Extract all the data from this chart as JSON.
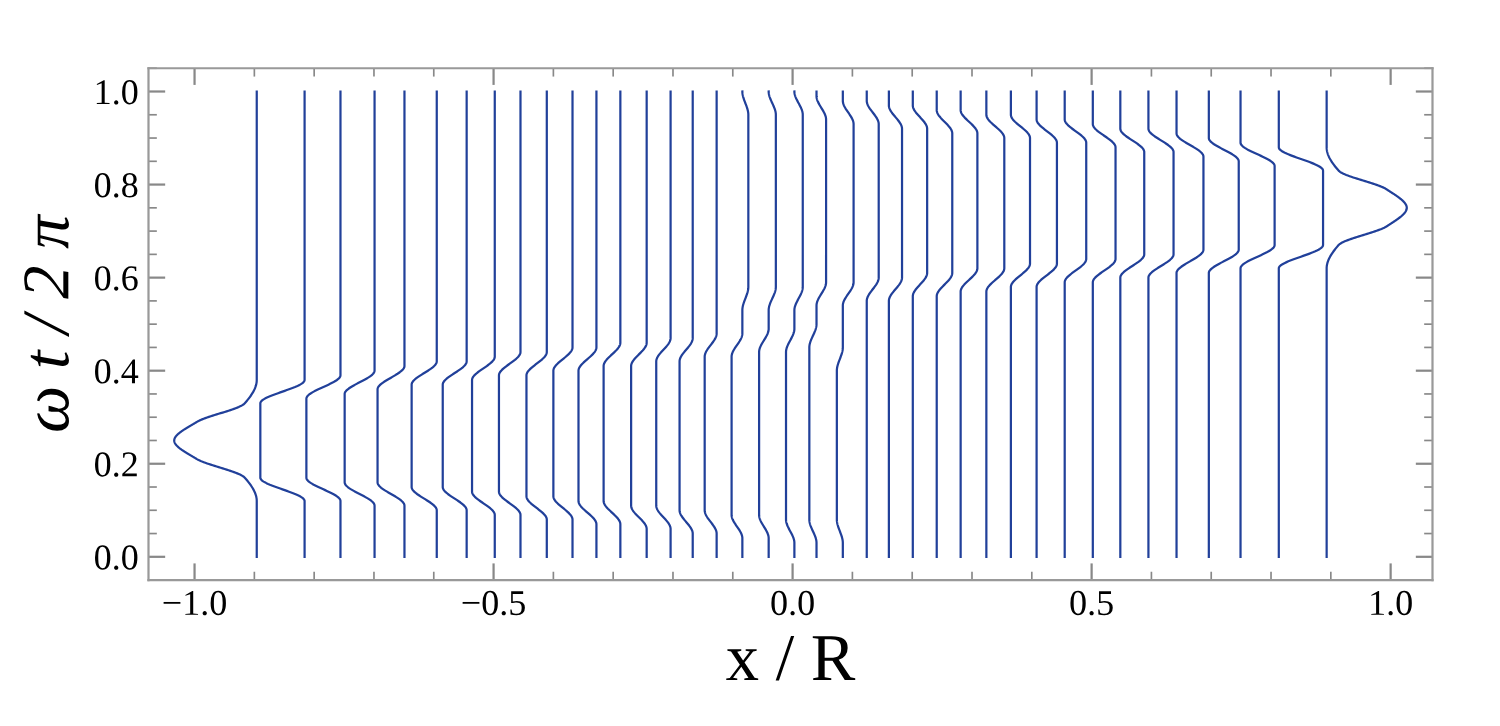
{
  "chart_data": {
    "type": "line",
    "xlabel": "x / R",
    "ylabel": "ω t / 2 π",
    "color": "#21409a",
    "xlim": [
      -1.077,
      1.07
    ],
    "xticks": [
      {
        "value": -1.0,
        "label": "−1.0"
      },
      {
        "value": -0.5,
        "label": "−0.5"
      },
      {
        "value": 0.0,
        "label": "0.0"
      },
      {
        "value": 0.5,
        "label": "0.5"
      },
      {
        "value": 1.0,
        "label": "1.0"
      }
    ],
    "ylim": [
      -0.05,
      1.05
    ],
    "yticks": [
      {
        "value": 0,
        "label": "0.0"
      },
      0.2,
      0.4,
      0.6,
      0.8,
      {
        "value": 1,
        "label": "1.0"
      }
    ],
    "grid": false,
    "legend": false,
    "series": [
      {
        "x": [
          -0.896,
          -0.896,
          -0.916,
          -0.996,
          -1.034,
          -0.996,
          -0.916,
          -0.896,
          -0.896
        ],
        "values": [
          0,
          0.12,
          0.17,
          0.21,
          0.25,
          0.29,
          0.33,
          0.38,
          1
        ]
      },
      {
        "x": [
          -0.816,
          -0.816,
          -0.89,
          -0.89,
          -0.816,
          -0.816
        ],
        "values": [
          0,
          0.12,
          0.17,
          0.33,
          0.38,
          1
        ]
      },
      {
        "x": [
          -0.756,
          -0.756,
          -0.813,
          -0.813,
          -0.756,
          -0.756
        ],
        "values": [
          0,
          0.12,
          0.17,
          0.34,
          0.39,
          1
        ]
      },
      {
        "x": [
          -0.699,
          -0.699,
          -0.749,
          -0.749,
          -0.699,
          -0.699
        ],
        "values": [
          0,
          0.11,
          0.16,
          0.35,
          0.4,
          1
        ]
      },
      {
        "x": [
          -0.649,
          -0.649,
          -0.694,
          -0.694,
          -0.649,
          -0.649
        ],
        "values": [
          0,
          0.11,
          0.16,
          0.36,
          0.41,
          1
        ]
      },
      {
        "x": [
          -0.595,
          -0.595,
          -0.637,
          -0.637,
          -0.595,
          -0.595
        ],
        "values": [
          0,
          0.1,
          0.15,
          0.37,
          0.42,
          1
        ]
      },
      {
        "x": [
          -0.545,
          -0.545,
          -0.585,
          -0.585,
          -0.545,
          -0.545
        ],
        "values": [
          0,
          0.1,
          0.15,
          0.37,
          0.42,
          1
        ]
      },
      {
        "x": [
          -0.498,
          -0.498,
          -0.536,
          -0.536,
          -0.498,
          -0.498
        ],
        "values": [
          0,
          0.09,
          0.14,
          0.38,
          0.43,
          1
        ]
      },
      {
        "x": [
          -0.455,
          -0.455,
          -0.491,
          -0.491,
          -0.455,
          -0.455
        ],
        "values": [
          0,
          0.09,
          0.14,
          0.39,
          0.44,
          1
        ]
      },
      {
        "x": [
          -0.411,
          -0.411,
          -0.445,
          -0.445,
          -0.411,
          -0.411
        ],
        "values": [
          0,
          0.08,
          0.13,
          0.39,
          0.44,
          1
        ]
      },
      {
        "x": [
          -0.368,
          -0.368,
          -0.4,
          -0.4,
          -0.368,
          -0.368
        ],
        "values": [
          0,
          0.08,
          0.13,
          0.4,
          0.45,
          1
        ]
      },
      {
        "x": [
          -0.328,
          -0.328,
          -0.358,
          -0.358,
          -0.328,
          -0.328
        ],
        "values": [
          0,
          0.07,
          0.12,
          0.4,
          0.45,
          1
        ]
      },
      {
        "x": [
          -0.288,
          -0.288,
          -0.316,
          -0.316,
          -0.288,
          -0.288
        ],
        "values": [
          0,
          0.07,
          0.12,
          0.41,
          0.46,
          1
        ]
      },
      {
        "x": [
          -0.244,
          -0.244,
          -0.27,
          -0.27,
          -0.244,
          -0.244
        ],
        "values": [
          0,
          0.06,
          0.11,
          0.41,
          0.46,
          1
        ]
      },
      {
        "x": [
          -0.204,
          -0.204,
          -0.228,
          -0.228,
          -0.204,
          -0.204
        ],
        "values": [
          0,
          0.06,
          0.11,
          0.42,
          0.47,
          1
        ]
      },
      {
        "x": [
          -0.167,
          -0.167,
          -0.189,
          -0.189,
          -0.167,
          -0.167
        ],
        "values": [
          0,
          0.05,
          0.1,
          0.42,
          0.47,
          1
        ]
      },
      {
        "x": [
          -0.127,
          -0.127,
          -0.147,
          -0.147,
          -0.127,
          -0.127
        ],
        "values": [
          0,
          0.05,
          0.1,
          0.43,
          0.48,
          1
        ]
      },
      {
        "x": [
          -0.084,
          -0.084,
          -0.102,
          -0.102,
          -0.084,
          -0.084,
          -0.074,
          -0.074,
          -0.084
        ],
        "values": [
          0,
          0.04,
          0.09,
          0.43,
          0.48,
          0.53,
          0.58,
          0.95,
          1
        ]
      },
      {
        "x": [
          -0.04,
          -0.04,
          -0.056,
          -0.056,
          -0.04,
          -0.04,
          -0.028,
          -0.028,
          -0.04
        ],
        "values": [
          0,
          0.04,
          0.09,
          0.44,
          0.49,
          0.53,
          0.58,
          0.95,
          1
        ]
      },
      {
        "x": [
          0.003,
          0.003,
          -0.011,
          -0.011,
          0.003,
          0.003,
          0.017,
          0.017,
          0.003
        ],
        "values": [
          0,
          0.03,
          0.08,
          0.44,
          0.49,
          0.53,
          0.58,
          0.95,
          1
        ]
      },
      {
        "x": [
          0.04,
          0.04,
          0.028,
          0.028,
          0.04,
          0.04,
          0.056,
          0.056,
          0.04,
          0.04
        ],
        "values": [
          0,
          0.03,
          0.08,
          0.45,
          0.5,
          0.54,
          0.59,
          0.94,
          0.99,
          1
        ]
      },
      {
        "x": [
          0.084,
          0.084,
          0.074,
          0.074,
          0.084,
          0.084,
          0.102,
          0.102,
          0.084,
          0.084
        ],
        "values": [
          0,
          0.03,
          0.08,
          0.4,
          0.45,
          0.54,
          0.59,
          0.93,
          0.98,
          1
        ]
      },
      {
        "x": [
          0.124,
          0.124,
          0.144,
          0.144,
          0.124,
          0.124
        ],
        "values": [
          0,
          0.55,
          0.6,
          0.93,
          0.98,
          1
        ]
      },
      {
        "x": [
          0.161,
          0.161,
          0.183,
          0.183,
          0.161,
          0.161
        ],
        "values": [
          0,
          0.55,
          0.6,
          0.92,
          0.97,
          1
        ]
      },
      {
        "x": [
          0.201,
          0.201,
          0.225,
          0.225,
          0.201,
          0.201
        ],
        "values": [
          0,
          0.56,
          0.61,
          0.92,
          0.97,
          1
        ]
      },
      {
        "x": [
          0.241,
          0.241,
          0.267,
          0.267,
          0.241,
          0.241
        ],
        "values": [
          0,
          0.56,
          0.61,
          0.91,
          0.96,
          1
        ]
      },
      {
        "x": [
          0.281,
          0.281,
          0.309,
          0.309,
          0.281,
          0.281
        ],
        "values": [
          0,
          0.57,
          0.62,
          0.91,
          0.96,
          1
        ]
      },
      {
        "x": [
          0.324,
          0.324,
          0.354,
          0.354,
          0.324,
          0.324
        ],
        "values": [
          0,
          0.57,
          0.62,
          0.9,
          0.95,
          1
        ]
      },
      {
        "x": [
          0.365,
          0.365,
          0.397,
          0.397,
          0.365,
          0.365
        ],
        "values": [
          0,
          0.58,
          0.63,
          0.9,
          0.95,
          1
        ]
      },
      {
        "x": [
          0.408,
          0.408,
          0.442,
          0.442,
          0.408,
          0.408
        ],
        "values": [
          0,
          0.58,
          0.63,
          0.89,
          0.94,
          1
        ]
      },
      {
        "x": [
          0.455,
          0.455,
          0.491,
          0.491,
          0.455,
          0.455
        ],
        "values": [
          0,
          0.59,
          0.64,
          0.89,
          0.94,
          1
        ]
      },
      {
        "x": [
          0.502,
          0.502,
          0.54,
          0.54,
          0.502,
          0.502
        ],
        "values": [
          0,
          0.59,
          0.64,
          0.88,
          0.93,
          1
        ]
      },
      {
        "x": [
          0.548,
          0.548,
          0.588,
          0.588,
          0.548,
          0.548
        ],
        "values": [
          0,
          0.6,
          0.65,
          0.87,
          0.92,
          1
        ]
      },
      {
        "x": [
          0.595,
          0.595,
          0.637,
          0.637,
          0.595,
          0.595
        ],
        "values": [
          0,
          0.6,
          0.65,
          0.87,
          0.92,
          1
        ]
      },
      {
        "x": [
          0.642,
          0.642,
          0.687,
          0.687,
          0.642,
          0.642
        ],
        "values": [
          0,
          0.61,
          0.66,
          0.86,
          0.91,
          1
        ]
      },
      {
        "x": [
          0.696,
          0.696,
          0.746,
          0.746,
          0.696,
          0.696
        ],
        "values": [
          0,
          0.61,
          0.66,
          0.85,
          0.9,
          1
        ]
      },
      {
        "x": [
          0.749,
          0.749,
          0.806,
          0.806,
          0.749,
          0.749
        ],
        "values": [
          0,
          0.62,
          0.67,
          0.84,
          0.89,
          1
        ]
      },
      {
        "x": [
          0.813,
          0.813,
          0.887,
          0.887,
          0.813,
          0.813
        ],
        "values": [
          0,
          0.62,
          0.67,
          0.83,
          0.88,
          1
        ]
      },
      {
        "x": [
          0.893,
          0.893,
          0.913,
          0.993,
          1.027,
          0.993,
          0.913,
          0.893,
          0.893
        ],
        "values": [
          0,
          0.62,
          0.67,
          0.71,
          0.75,
          0.79,
          0.83,
          0.88,
          1
        ]
      }
    ]
  }
}
